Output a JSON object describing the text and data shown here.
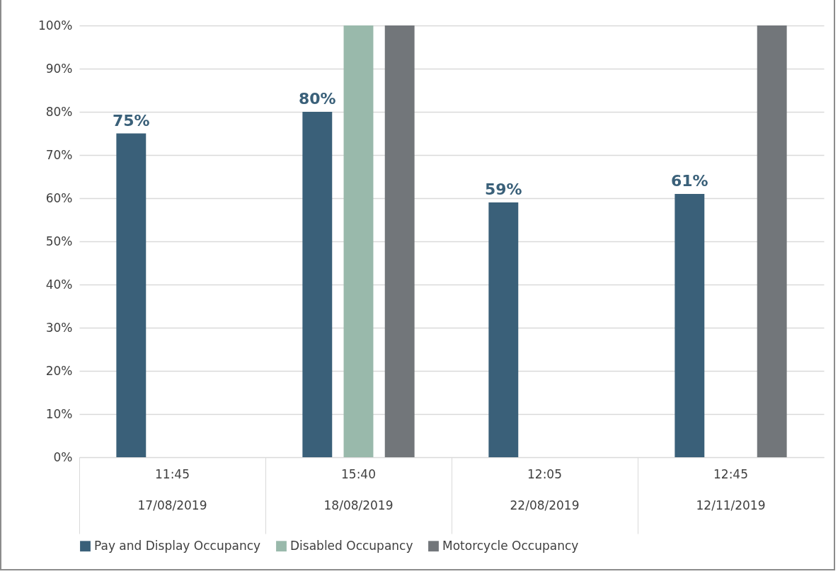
{
  "chart_data": {
    "type": "bar",
    "categories": [
      "11:45\n17/08/2019",
      "15:40\n18/08/2019",
      "12:05\n22/08/2019",
      "12:45\n12/11/2019"
    ],
    "series": [
      {
        "name": "Pay and Display Occupancy",
        "color": "#3a6079",
        "values": [
          75,
          80,
          59,
          61
        ],
        "value_labels": [
          "75%",
          "80%",
          "59%",
          "61%"
        ]
      },
      {
        "name": "Disabled Occupancy",
        "color": "#99b9ab",
        "values": [
          null,
          100,
          null,
          null
        ]
      },
      {
        "name": "Motorcycle Occupancy",
        "color": "#72767a",
        "values": [
          null,
          100,
          null,
          100
        ]
      }
    ],
    "ylim": [
      0,
      100
    ],
    "yticks": [
      {
        "value": 0,
        "label": "0%"
      },
      {
        "value": 10,
        "label": "10%"
      },
      {
        "value": 20,
        "label": "20%"
      },
      {
        "value": 30,
        "label": "30%"
      },
      {
        "value": 40,
        "label": "40%"
      },
      {
        "value": 50,
        "label": "50%"
      },
      {
        "value": 60,
        "label": "60%"
      },
      {
        "value": 70,
        "label": "70%"
      },
      {
        "value": 80,
        "label": "80%"
      },
      {
        "value": 90,
        "label": "90%"
      },
      {
        "value": 100,
        "label": "100%"
      }
    ],
    "grid": "y",
    "legend": "bottom"
  }
}
